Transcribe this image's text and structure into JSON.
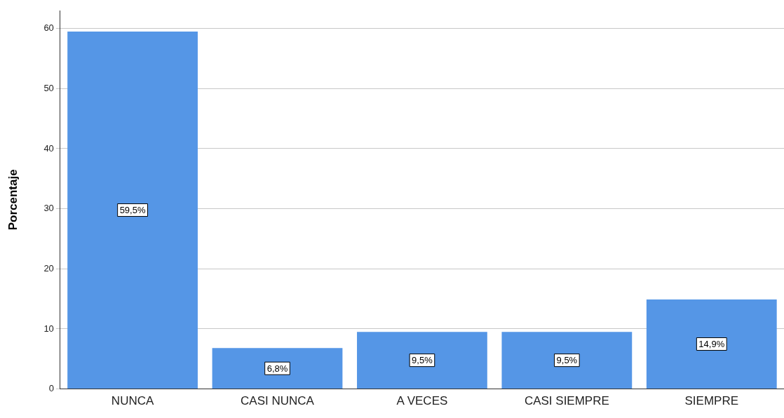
{
  "chart_data": {
    "type": "bar",
    "ylabel": "Porcentaje",
    "categories": [
      "NUNCA",
      "CASI NUNCA",
      "A VECES",
      "CASI SIEMPRE",
      "SIEMPRE"
    ],
    "values": [
      59.5,
      6.8,
      9.5,
      9.5,
      14.9
    ],
    "value_labels": [
      "59,5%",
      "6,8%",
      "9,5%",
      "9,5%",
      "14,9%"
    ],
    "color": "#5596e6",
    "ylim": [
      0,
      63
    ],
    "yticks": [
      0,
      10,
      20,
      30,
      40,
      50,
      60
    ],
    "grid": "y",
    "legend": false
  }
}
